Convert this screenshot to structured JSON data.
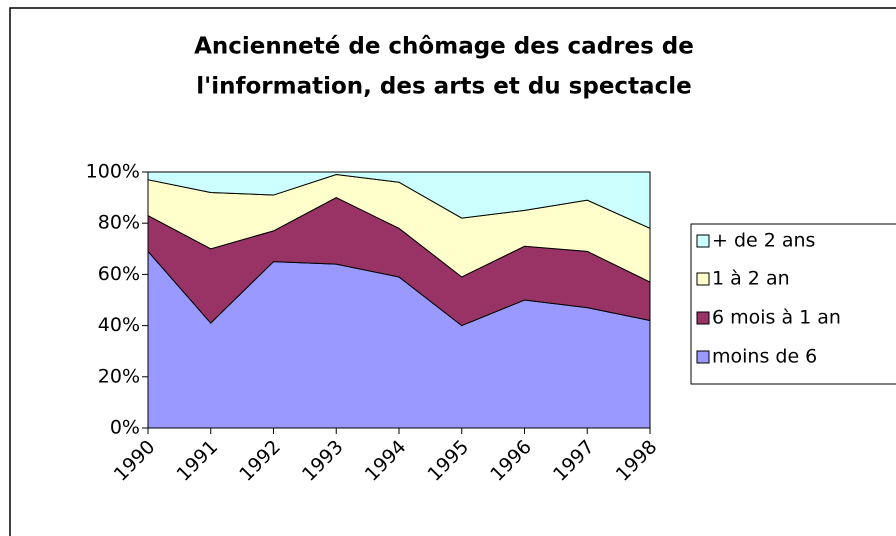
{
  "chart_data": {
    "type": "stacked_area",
    "title": [
      "Ancienneté de chômage des cadres de",
      "l'information, des arts et du spectacle"
    ],
    "categories": [
      "1990",
      "1991",
      "1992",
      "1993",
      "1994",
      "1995",
      "1996",
      "1997",
      "1998"
    ],
    "series": [
      {
        "name": "moins de 6",
        "color": "#9999ff",
        "values": [
          69,
          41,
          65,
          64,
          59,
          40,
          50,
          47,
          42
        ]
      },
      {
        "name": "6 mois à 1 an",
        "color": "#993366",
        "values": [
          14,
          29,
          12,
          26,
          19,
          19,
          21,
          22,
          15
        ]
      },
      {
        "name": "1 à 2 an",
        "color": "#ffffcc",
        "values": [
          14,
          22,
          14,
          9,
          18,
          23,
          14,
          20,
          21
        ]
      },
      {
        "name": "+ de 2 ans",
        "color": "#ccffff",
        "values": [
          3,
          8,
          9,
          1,
          4,
          18,
          15,
          11,
          22
        ]
      }
    ],
    "ylim": [
      0,
      100
    ],
    "yticks": [
      {
        "value": 0,
        "label": "0%"
      },
      {
        "value": 20,
        "label": "20%"
      },
      {
        "value": 40,
        "label": "40%"
      },
      {
        "value": 60,
        "label": "60%"
      },
      {
        "value": 80,
        "label": "80%"
      },
      {
        "value": 100,
        "label": "100%"
      }
    ],
    "grid": false,
    "legend": "right"
  }
}
